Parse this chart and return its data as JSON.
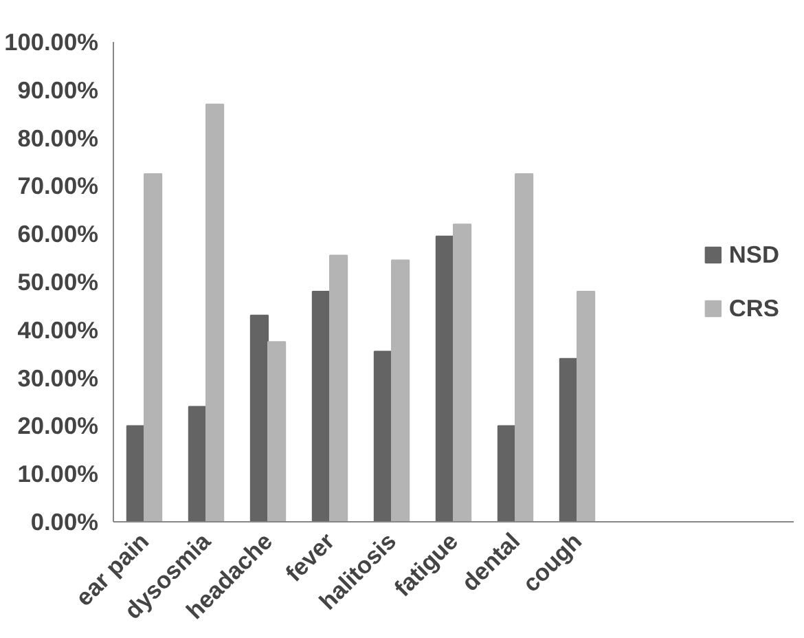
{
  "chart_data": {
    "type": "bar",
    "categories": [
      "ear pain",
      "dysosmia",
      "headache",
      "fever",
      "halitosis",
      "fatigue",
      "dental",
      "cough",
      null,
      null,
      null
    ],
    "series": [
      {
        "name": "NSD",
        "color": "#646464",
        "values": [
          20,
          24,
          43,
          48,
          35.5,
          59.5,
          20,
          34,
          null,
          null,
          null
        ]
      },
      {
        "name": "CRS",
        "color": "#b4b4b4",
        "values": [
          72.5,
          87,
          37.5,
          55.5,
          54.5,
          62,
          72.5,
          48,
          null,
          null,
          null
        ]
      }
    ],
    "ylim": [
      0,
      100
    ],
    "yticks": [
      {
        "value": 0,
        "label": "0.00%"
      },
      {
        "value": 10,
        "label": "10.00%"
      },
      {
        "value": 20,
        "label": "20.00%"
      },
      {
        "value": 30,
        "label": "30.00%"
      },
      {
        "value": 40,
        "label": "40.00%"
      },
      {
        "value": 50,
        "label": "50.00%"
      },
      {
        "value": 60,
        "label": "60.00%"
      },
      {
        "value": 70,
        "label": "70.00%"
      },
      {
        "value": 80,
        "label": "80.00%"
      },
      {
        "value": 90,
        "label": "90.00%"
      },
      {
        "value": 100,
        "label": "100.00%"
      }
    ],
    "grid": false,
    "legend": "right"
  }
}
